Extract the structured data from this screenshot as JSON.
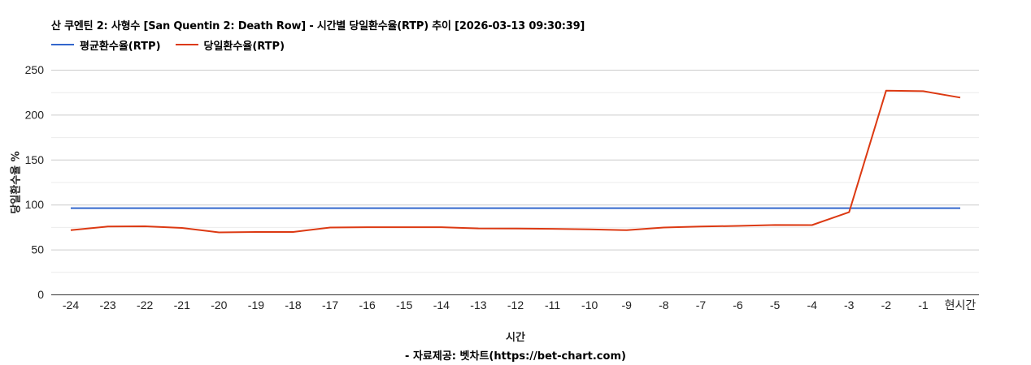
{
  "header": {
    "title": "산 쿠엔틴 2: 사형수 [San Quentin 2: Death Row] - 시간별 당일환수율(RTP) 추이 [2026-03-13 09:30:39]"
  },
  "legend": [
    {
      "label": "평균환수율(RTP)",
      "color": "#3366cc"
    },
    {
      "label": "당일환수율(RTP)",
      "color": "#dc3912"
    }
  ],
  "axes": {
    "ylabel": "당일환수율 %",
    "xlabel": "시간",
    "credit": "- 자료제공: 벳차트(https://bet-chart.com)"
  },
  "chart_data": {
    "type": "line",
    "title": "산 쿠엔틴 2: 사형수 [San Quentin 2: Death Row] - 시간별 당일환수율(RTP) 추이 [2026-03-13 09:30:39]",
    "xlabel": "시간",
    "ylabel": "당일환수율 %",
    "categories": [
      "-24",
      "-23",
      "-22",
      "-21",
      "-20",
      "-19",
      "-18",
      "-17",
      "-16",
      "-15",
      "-14",
      "-13",
      "-12",
      "-11",
      "-10",
      "-9",
      "-8",
      "-7",
      "-6",
      "-5",
      "-4",
      "-3",
      "-2",
      "-1",
      "현시간"
    ],
    "series": [
      {
        "name": "평균환수율(RTP)",
        "color": "#3366cc",
        "values": [
          96,
          96,
          96,
          96,
          96,
          96,
          96,
          96,
          96,
          96,
          96,
          96,
          96,
          96,
          96,
          96,
          96,
          96,
          96,
          96,
          96,
          96,
          96,
          96,
          96
        ]
      },
      {
        "name": "당일환수율(RTP)",
        "color": "#dc3912",
        "values": [
          71.5,
          75.5,
          75.8,
          74,
          69,
          69.5,
          69.5,
          74.5,
          74.8,
          74.8,
          74.8,
          73.5,
          73.4,
          73,
          72.5,
          71.5,
          74.5,
          75.5,
          76.3,
          77.3,
          77.2,
          91.5,
          226.8,
          226.2,
          219
        ]
      }
    ],
    "ylim": [
      0,
      250
    ],
    "yticks": [
      0,
      50,
      100,
      150,
      200,
      250
    ],
    "minor_gridlines": [
      25,
      75,
      125,
      175,
      225
    ],
    "grid": true,
    "legend_position": "top"
  }
}
